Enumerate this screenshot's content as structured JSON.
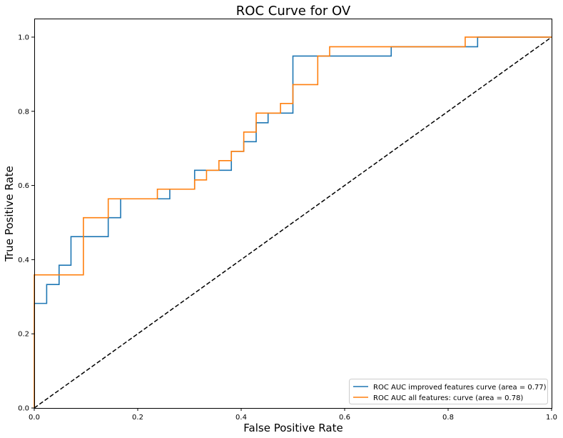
{
  "chart_data": {
    "type": "line",
    "title": "ROC Curve for OV",
    "xlabel": "False Positive Rate",
    "ylabel": "True Positive Rate",
    "xlim": [
      0.0,
      1.0
    ],
    "ylim": [
      0.0,
      1.05
    ],
    "xticks": [
      0.0,
      0.2,
      0.4,
      0.6,
      0.8,
      1.0
    ],
    "xtick_labels": [
      "0.0",
      "0.2",
      "0.4",
      "0.6",
      "0.8",
      "1.0"
    ],
    "yticks": [
      0.0,
      0.2,
      0.4,
      0.6,
      0.8,
      1.0
    ],
    "ytick_labels": [
      "0.0",
      "0.2",
      "0.4",
      "0.6",
      "0.8",
      "1.0"
    ],
    "grid": false,
    "legend_position": "lower-right",
    "series": [
      {
        "name": "ROC AUC improved features curve (area = 0.77)",
        "color": "#1f77b4",
        "style": "step",
        "x": [
          0.0,
          0.0,
          0.024,
          0.024,
          0.048,
          0.048,
          0.071,
          0.071,
          0.143,
          0.143,
          0.167,
          0.167,
          0.262,
          0.262,
          0.31,
          0.31,
          0.357,
          0.357,
          0.381,
          0.381,
          0.405,
          0.405,
          0.429,
          0.429,
          0.452,
          0.452,
          0.5,
          0.5,
          0.69,
          0.69,
          0.857,
          0.857,
          1.0
        ],
        "y": [
          0.0,
          0.282,
          0.282,
          0.333,
          0.333,
          0.385,
          0.385,
          0.462,
          0.462,
          0.513,
          0.513,
          0.564,
          0.564,
          0.59,
          0.59,
          0.641,
          0.641,
          0.641,
          0.641,
          0.692,
          0.692,
          0.718,
          0.718,
          0.769,
          0.769,
          0.795,
          0.795,
          0.949,
          0.949,
          0.974,
          0.974,
          1.0,
          1.0
        ]
      },
      {
        "name": "ROC AUC all features: curve (area = 0.78)",
        "color": "#ff7f0e",
        "style": "step",
        "x": [
          0.0,
          0.0,
          0.095,
          0.095,
          0.143,
          0.143,
          0.238,
          0.238,
          0.31,
          0.31,
          0.333,
          0.333,
          0.357,
          0.357,
          0.381,
          0.381,
          0.405,
          0.405,
          0.429,
          0.429,
          0.476,
          0.476,
          0.5,
          0.5,
          0.548,
          0.548,
          0.571,
          0.571,
          0.833,
          0.833,
          1.0
        ],
        "y": [
          0.0,
          0.359,
          0.359,
          0.513,
          0.513,
          0.564,
          0.564,
          0.59,
          0.59,
          0.615,
          0.615,
          0.641,
          0.641,
          0.667,
          0.667,
          0.692,
          0.692,
          0.744,
          0.744,
          0.795,
          0.795,
          0.821,
          0.821,
          0.872,
          0.872,
          0.949,
          0.949,
          0.974,
          0.974,
          1.0,
          1.0
        ]
      },
      {
        "name": "",
        "color": "#000000",
        "style": "dashed",
        "x": [
          0.0,
          1.0
        ],
        "y": [
          0.0,
          1.0
        ]
      }
    ]
  }
}
